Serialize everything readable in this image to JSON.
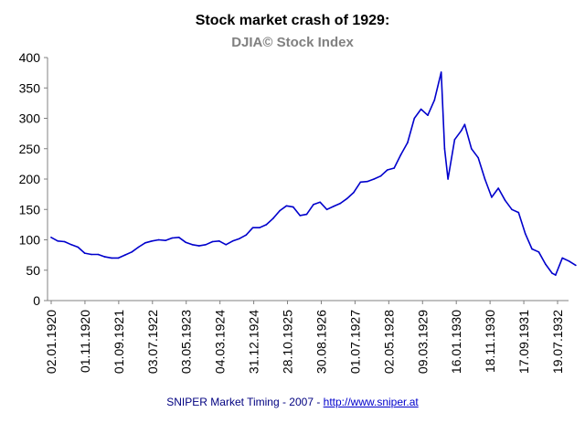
{
  "chart_data": {
    "type": "line",
    "title": "Stock market crash of 1929:",
    "subtitle": "DJIA©  Stock Index",
    "xlabel": "",
    "ylabel": "",
    "ylim": [
      0,
      400
    ],
    "y_ticks": [
      0,
      50,
      100,
      150,
      200,
      250,
      300,
      350,
      400
    ],
    "x_tick_labels": [
      "02.01.1920",
      "01.11.1920",
      "01.09.1921",
      "03.07.1922",
      "03.05.1923",
      "04.03.1924",
      "31.12.1924",
      "28.10.1925",
      "30.08.1926",
      "01.07.1927",
      "02.05.1928",
      "09.03.1929",
      "16.01.1930",
      "18.11.1930",
      "17.09.1931",
      "19.07.1932"
    ],
    "grid": false,
    "legend": "none",
    "line_color": "#0000cc",
    "series": [
      {
        "x": [
          "1920-01",
          "1920-03",
          "1920-05",
          "1920-07",
          "1920-09",
          "1920-11",
          "1921-01",
          "1921-03",
          "1921-05",
          "1921-07",
          "1921-09",
          "1921-11",
          "1922-01",
          "1922-03",
          "1922-05",
          "1922-07",
          "1922-09",
          "1922-11",
          "1923-01",
          "1923-03",
          "1923-05",
          "1923-07",
          "1923-09",
          "1923-11",
          "1924-01",
          "1924-03",
          "1924-05",
          "1924-07",
          "1924-09",
          "1924-11",
          "1925-01",
          "1925-03",
          "1925-05",
          "1925-07",
          "1925-09",
          "1925-11",
          "1926-01",
          "1926-03",
          "1926-05",
          "1926-07",
          "1926-09",
          "1926-11",
          "1927-01",
          "1927-03",
          "1927-05",
          "1927-07",
          "1927-09",
          "1927-11",
          "1928-01",
          "1928-03",
          "1928-05",
          "1928-07",
          "1928-09",
          "1928-11",
          "1929-01",
          "1929-03",
          "1929-05",
          "1929-07",
          "1929-09",
          "1929-10",
          "1929-11",
          "1930-01",
          "1930-03",
          "1930-04",
          "1930-06",
          "1930-08",
          "1930-10",
          "1930-12",
          "1931-02",
          "1931-04",
          "1931-06",
          "1931-08",
          "1931-10",
          "1931-12",
          "1932-02",
          "1932-04",
          "1932-06",
          "1932-07",
          "1932-09",
          "1932-11",
          "1933-01"
        ],
        "values": [
          104,
          98,
          97,
          92,
          88,
          78,
          76,
          76,
          72,
          70,
          70,
          75,
          80,
          88,
          95,
          98,
          100,
          99,
          103,
          104,
          96,
          92,
          90,
          92,
          97,
          98,
          92,
          98,
          102,
          108,
          120,
          120,
          125,
          135,
          148,
          156,
          154,
          140,
          142,
          158,
          162,
          150,
          155,
          160,
          168,
          178,
          195,
          196,
          200,
          205,
          215,
          218,
          240,
          260,
          300,
          315,
          305,
          330,
          376,
          250,
          200,
          265,
          280,
          290,
          250,
          235,
          200,
          170,
          185,
          165,
          150,
          145,
          110,
          85,
          80,
          60,
          45,
          42,
          70,
          65,
          58
        ]
      }
    ]
  },
  "footer": {
    "text": "SNIPER Market Timing - 2007 - ",
    "link": "http://www.sniper.at"
  }
}
